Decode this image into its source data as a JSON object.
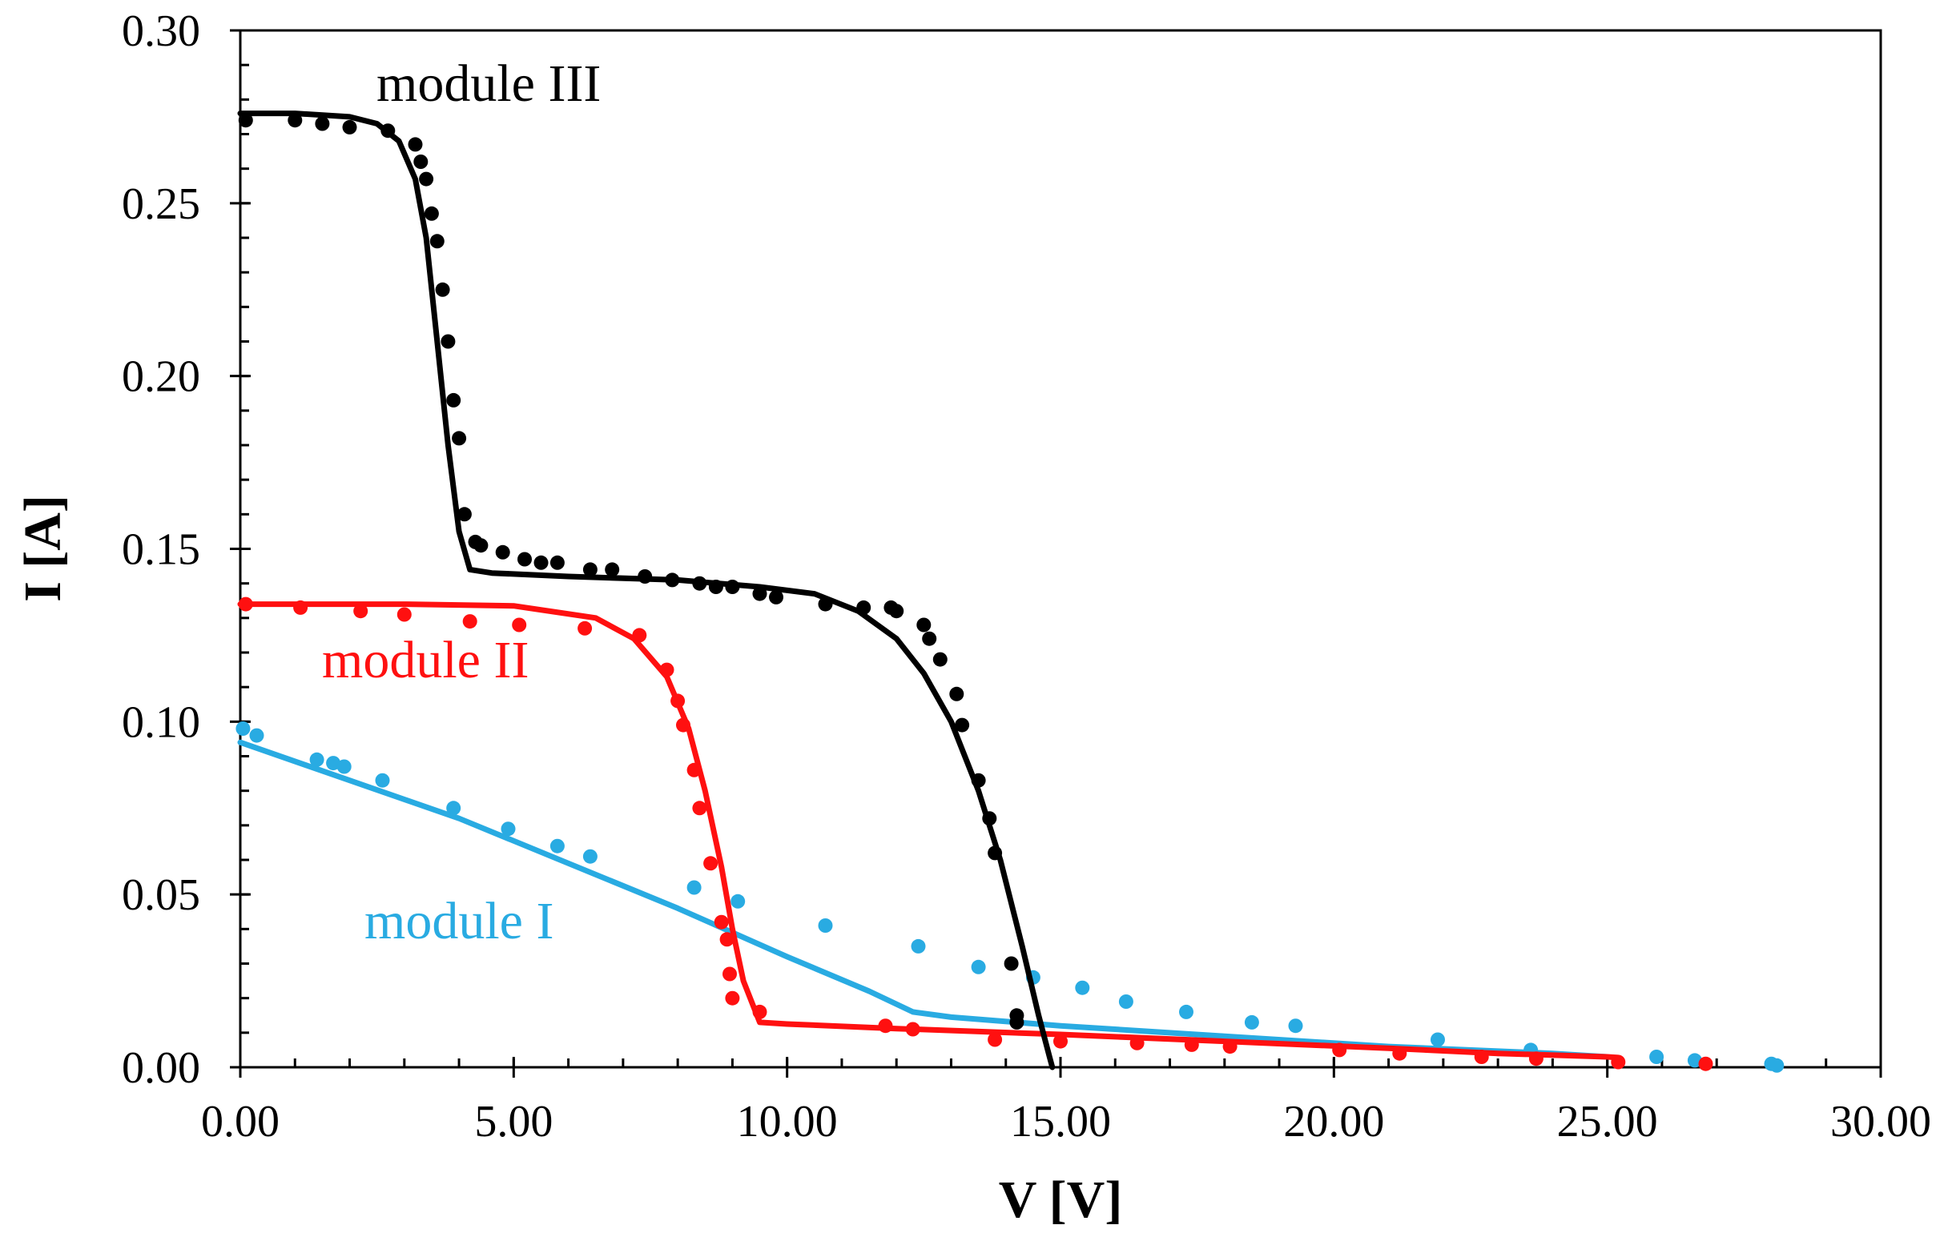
{
  "chart_data": {
    "type": "scatter",
    "title": "",
    "xlabel": "V [V]",
    "ylabel": "I [A]",
    "xlim": [
      0,
      30
    ],
    "ylim": [
      0,
      0.3
    ],
    "x_ticks": [
      0,
      5,
      10,
      15,
      20,
      25,
      30
    ],
    "y_ticks": [
      0,
      0.05,
      0.1,
      0.15,
      0.2,
      0.25,
      0.3
    ],
    "x_tick_labels": [
      "0.00",
      "5.00",
      "10.00",
      "15.00",
      "20.00",
      "25.00",
      "30.00"
    ],
    "y_tick_labels": [
      "0.00",
      "0.05",
      "0.10",
      "0.15",
      "0.20",
      "0.25",
      "0.30"
    ],
    "x_minor_step": 1,
    "y_minor_step": 0.01,
    "grid": false,
    "series": [
      {
        "name": "module I",
        "label": "module I",
        "color": "#29abe2",
        "measured": [
          [
            0.05,
            0.098
          ],
          [
            0.3,
            0.096
          ],
          [
            1.4,
            0.089
          ],
          [
            1.7,
            0.088
          ],
          [
            1.9,
            0.087
          ],
          [
            2.6,
            0.083
          ],
          [
            3.9,
            0.075
          ],
          [
            4.9,
            0.069
          ],
          [
            5.8,
            0.064
          ],
          [
            6.4,
            0.061
          ],
          [
            8.3,
            0.052
          ],
          [
            9.1,
            0.048
          ],
          [
            10.7,
            0.041
          ],
          [
            12.4,
            0.035
          ],
          [
            13.5,
            0.029
          ],
          [
            14.5,
            0.026
          ],
          [
            15.4,
            0.023
          ],
          [
            16.2,
            0.019
          ],
          [
            17.3,
            0.016
          ],
          [
            18.5,
            0.013
          ],
          [
            19.3,
            0.012
          ],
          [
            21.9,
            0.008
          ],
          [
            23.6,
            0.005
          ],
          [
            25.9,
            0.003
          ],
          [
            26.6,
            0.002
          ],
          [
            28.0,
            0.001
          ],
          [
            28.1,
            0.0005
          ]
        ],
        "model": [
          [
            0,
            0.094
          ],
          [
            2,
            0.083
          ],
          [
            4,
            0.072
          ],
          [
            6,
            0.059
          ],
          [
            8,
            0.046
          ],
          [
            10,
            0.032
          ],
          [
            11.5,
            0.022
          ],
          [
            12.3,
            0.016
          ],
          [
            13,
            0.0145
          ],
          [
            15,
            0.012
          ],
          [
            18,
            0.009
          ],
          [
            21,
            0.006
          ],
          [
            24,
            0.004
          ],
          [
            25,
            0.003
          ]
        ]
      },
      {
        "name": "module II",
        "label": "module II",
        "color": "#ff1010",
        "measured": [
          [
            0.1,
            0.134
          ],
          [
            1.1,
            0.133
          ],
          [
            2.2,
            0.132
          ],
          [
            3.0,
            0.131
          ],
          [
            4.2,
            0.129
          ],
          [
            5.1,
            0.128
          ],
          [
            6.3,
            0.127
          ],
          [
            7.3,
            0.125
          ],
          [
            7.8,
            0.115
          ],
          [
            8.0,
            0.106
          ],
          [
            8.1,
            0.099
          ],
          [
            8.3,
            0.086
          ],
          [
            8.4,
            0.075
          ],
          [
            8.6,
            0.059
          ],
          [
            8.8,
            0.042
          ],
          [
            8.9,
            0.037
          ],
          [
            8.95,
            0.027
          ],
          [
            9.0,
            0.02
          ],
          [
            9.5,
            0.016
          ],
          [
            11.8,
            0.012
          ],
          [
            12.3,
            0.011
          ],
          [
            13.8,
            0.008
          ],
          [
            15.0,
            0.0075
          ],
          [
            16.4,
            0.007
          ],
          [
            17.4,
            0.0065
          ],
          [
            18.1,
            0.006
          ],
          [
            20.1,
            0.005
          ],
          [
            21.2,
            0.004
          ],
          [
            22.7,
            0.003
          ],
          [
            23.7,
            0.0025
          ],
          [
            25.2,
            0.0015
          ],
          [
            26.8,
            0.001
          ]
        ],
        "model": [
          [
            0,
            0.134
          ],
          [
            3,
            0.134
          ],
          [
            5,
            0.1335
          ],
          [
            6.5,
            0.13
          ],
          [
            7.2,
            0.124
          ],
          [
            7.8,
            0.113
          ],
          [
            8.2,
            0.098
          ],
          [
            8.5,
            0.08
          ],
          [
            8.8,
            0.058
          ],
          [
            9.0,
            0.04
          ],
          [
            9.2,
            0.025
          ],
          [
            9.5,
            0.013
          ],
          [
            10,
            0.0125
          ],
          [
            12,
            0.0112
          ],
          [
            15,
            0.0095
          ],
          [
            18,
            0.0075
          ],
          [
            21,
            0.0055
          ],
          [
            23,
            0.004
          ],
          [
            25,
            0.003
          ],
          [
            25.2,
            0.0028
          ]
        ]
      },
      {
        "name": "module III",
        "label": "module III",
        "color": "#000000",
        "measured": [
          [
            0.1,
            0.274
          ],
          [
            1.0,
            0.274
          ],
          [
            1.5,
            0.273
          ],
          [
            2.0,
            0.272
          ],
          [
            2.7,
            0.271
          ],
          [
            3.2,
            0.267
          ],
          [
            3.3,
            0.262
          ],
          [
            3.4,
            0.257
          ],
          [
            3.5,
            0.247
          ],
          [
            3.6,
            0.239
          ],
          [
            3.7,
            0.225
          ],
          [
            3.8,
            0.21
          ],
          [
            3.9,
            0.193
          ],
          [
            4.0,
            0.182
          ],
          [
            4.1,
            0.16
          ],
          [
            4.3,
            0.152
          ],
          [
            4.4,
            0.151
          ],
          [
            4.8,
            0.149
          ],
          [
            5.2,
            0.147
          ],
          [
            5.5,
            0.146
          ],
          [
            5.8,
            0.146
          ],
          [
            6.4,
            0.144
          ],
          [
            6.8,
            0.144
          ],
          [
            7.4,
            0.142
          ],
          [
            7.9,
            0.141
          ],
          [
            8.4,
            0.14
          ],
          [
            8.7,
            0.139
          ],
          [
            9.0,
            0.139
          ],
          [
            9.5,
            0.137
          ],
          [
            9.8,
            0.136
          ],
          [
            10.7,
            0.134
          ],
          [
            11.4,
            0.133
          ],
          [
            11.9,
            0.133
          ],
          [
            12.0,
            0.132
          ],
          [
            12.5,
            0.128
          ],
          [
            12.6,
            0.124
          ],
          [
            12.8,
            0.118
          ],
          [
            13.1,
            0.108
          ],
          [
            13.2,
            0.099
          ],
          [
            13.5,
            0.083
          ],
          [
            13.7,
            0.072
          ],
          [
            13.8,
            0.062
          ],
          [
            14.1,
            0.03
          ],
          [
            14.2,
            0.015
          ],
          [
            14.2,
            0.013
          ]
        ],
        "model": [
          [
            0,
            0.276
          ],
          [
            1,
            0.276
          ],
          [
            2,
            0.275
          ],
          [
            2.5,
            0.273
          ],
          [
            2.9,
            0.268
          ],
          [
            3.2,
            0.257
          ],
          [
            3.4,
            0.24
          ],
          [
            3.6,
            0.21
          ],
          [
            3.8,
            0.18
          ],
          [
            4.0,
            0.155
          ],
          [
            4.2,
            0.144
          ],
          [
            4.6,
            0.143
          ],
          [
            6,
            0.142
          ],
          [
            8,
            0.141
          ],
          [
            9.5,
            0.139
          ],
          [
            10.5,
            0.137
          ],
          [
            11.3,
            0.132
          ],
          [
            12,
            0.124
          ],
          [
            12.5,
            0.114
          ],
          [
            13,
            0.1
          ],
          [
            13.5,
            0.08
          ],
          [
            13.9,
            0.06
          ],
          [
            14.3,
            0.035
          ],
          [
            14.6,
            0.015
          ],
          [
            14.8,
            0.003
          ],
          [
            14.85,
            0
          ]
        ]
      }
    ]
  }
}
